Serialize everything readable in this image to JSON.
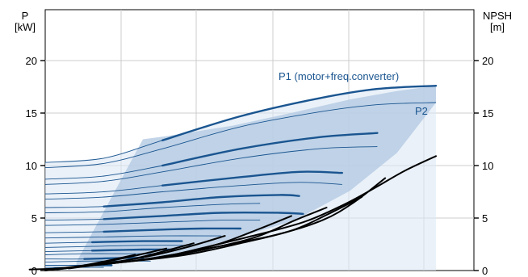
{
  "chart_data": {
    "type": "line",
    "title": "",
    "y_left_label": [
      "P",
      "[kW]"
    ],
    "y_right_label": [
      "NPSH",
      "[m]"
    ],
    "y_left_ticks": [
      "0",
      "5",
      "10",
      "15",
      "20"
    ],
    "y_right_ticks": [
      "0",
      "5",
      "10",
      "15",
      "20"
    ],
    "ylim": [
      0,
      24
    ],
    "xlim": [
      0,
      10
    ],
    "grid": true,
    "colors": {
      "power": "#1a5590",
      "npsh": "#000000",
      "band": "#b7cce4",
      "band_light": "#dce8f5",
      "grid": "#cccccc"
    },
    "annotations": {
      "p1": "P1 (motor+freq.converter)",
      "p2": "P2"
    },
    "speed_region": {
      "x": [
        2.5,
        3.1,
        4.8,
        6.4,
        7.8,
        9.0,
        10.0,
        10.0,
        9.0,
        7.8,
        6.4,
        4.8,
        3.4,
        2.0,
        0.8,
        0.8
      ],
      "y": [
        12.5,
        12.8,
        13.8,
        15.1,
        16.3,
        17.1,
        17.6,
        16.0,
        11.2,
        7.6,
        4.8,
        3.0,
        1.6,
        0.8,
        0.4,
        0.8
      ]
    },
    "power_curves": [
      {
        "name": "P1",
        "points": [
          [
            0,
            10.3
          ],
          [
            1.5,
            10.7
          ],
          [
            3.0,
            12.4
          ],
          [
            5.0,
            14.7
          ],
          [
            7.0,
            16.4
          ],
          [
            8.5,
            17.3
          ],
          [
            10,
            17.6
          ]
        ],
        "bold_from": 3.0
      },
      {
        "name": "P2",
        "points": [
          [
            0,
            9.8
          ],
          [
            1.5,
            10.2
          ],
          [
            3.0,
            11.6
          ],
          [
            5.0,
            13.7
          ],
          [
            7.0,
            15.1
          ],
          [
            8.5,
            15.8
          ],
          [
            10,
            16.0
          ]
        ],
        "bold_from": 99
      },
      {
        "points": [
          [
            0,
            8.7
          ],
          [
            1.5,
            9.0
          ],
          [
            3.0,
            10.0
          ],
          [
            5.0,
            11.6
          ],
          [
            7.0,
            12.7
          ],
          [
            8.5,
            13.1
          ]
        ],
        "bold_from": 3.0
      },
      {
        "points": [
          [
            0,
            8.2
          ],
          [
            1.5,
            8.5
          ],
          [
            3.0,
            9.4
          ],
          [
            5.0,
            10.7
          ],
          [
            7.0,
            11.6
          ],
          [
            8.5,
            11.8
          ]
        ],
        "bold_from": 99
      },
      {
        "points": [
          [
            0,
            7.3
          ],
          [
            1.5,
            7.5
          ],
          [
            3.0,
            8.1
          ],
          [
            5.0,
            8.9
          ],
          [
            6.5,
            9.4
          ],
          [
            7.6,
            9.3
          ]
        ],
        "bold_from": 3.0
      },
      {
        "points": [
          [
            0,
            6.8
          ],
          [
            1.5,
            7.0
          ],
          [
            3.0,
            7.5
          ],
          [
            5.0,
            8.1
          ],
          [
            6.5,
            8.4
          ],
          [
            7.6,
            8.2
          ]
        ],
        "bold_from": 99
      },
      {
        "points": [
          [
            0,
            6.0
          ],
          [
            1.5,
            6.1
          ],
          [
            3.0,
            6.5
          ],
          [
            4.5,
            7.0
          ],
          [
            6.0,
            7.2
          ],
          [
            6.5,
            7.1
          ]
        ],
        "bold_from": 1.5
      },
      {
        "points": [
          [
            0,
            5.5
          ],
          [
            1.5,
            5.6
          ],
          [
            3.0,
            6.0
          ],
          [
            4.5,
            6.3
          ],
          [
            5.5,
            6.4
          ]
        ],
        "bold_from": 99
      },
      {
        "points": [
          [
            0,
            4.8
          ],
          [
            1.5,
            4.9
          ],
          [
            3.0,
            5.2
          ],
          [
            4.5,
            5.5
          ],
          [
            6.0,
            5.5
          ],
          [
            6.6,
            5.4
          ]
        ],
        "bold_from": 1.5
      },
      {
        "points": [
          [
            0,
            4.3
          ],
          [
            1.5,
            4.4
          ],
          [
            3.0,
            4.6
          ],
          [
            4.5,
            4.8
          ],
          [
            5.5,
            4.8
          ]
        ],
        "bold_from": 99
      },
      {
        "points": [
          [
            0,
            3.6
          ],
          [
            1.5,
            3.7
          ],
          [
            3.0,
            3.9
          ],
          [
            4.0,
            4.0
          ],
          [
            5.0,
            4.0
          ]
        ],
        "bold_from": 1.5
      },
      {
        "points": [
          [
            0,
            3.1
          ],
          [
            1.5,
            3.2
          ],
          [
            3.0,
            3.3
          ],
          [
            4.5,
            3.3
          ]
        ],
        "bold_from": 99
      },
      {
        "points": [
          [
            0,
            2.6
          ],
          [
            1.2,
            2.7
          ],
          [
            2.5,
            2.8
          ],
          [
            3.5,
            2.8
          ]
        ],
        "bold_from": 1.2
      },
      {
        "points": [
          [
            0,
            2.2
          ],
          [
            1.2,
            2.3
          ],
          [
            2.5,
            2.4
          ],
          [
            3.8,
            2.4
          ]
        ],
        "bold_from": 99
      },
      {
        "points": [
          [
            0,
            1.8
          ],
          [
            1.2,
            1.9
          ],
          [
            2.5,
            2.0
          ],
          [
            3.3,
            2.0
          ]
        ],
        "bold_from": 1.0
      },
      {
        "points": [
          [
            0,
            1.5
          ],
          [
            1.0,
            1.6
          ],
          [
            2.0,
            1.6
          ],
          [
            3.0,
            1.6
          ]
        ],
        "bold_from": 99
      },
      {
        "points": [
          [
            0,
            1.1
          ],
          [
            1.0,
            1.1
          ],
          [
            2.0,
            1.2
          ],
          [
            2.5,
            1.2
          ]
        ],
        "bold_from": 0.8
      },
      {
        "points": [
          [
            0,
            0.8
          ],
          [
            1.0,
            0.9
          ],
          [
            2.0,
            0.9
          ],
          [
            2.7,
            0.9
          ]
        ],
        "bold_from": 99
      },
      {
        "points": [
          [
            0,
            0.5
          ],
          [
            1.0,
            0.5
          ],
          [
            1.7,
            0.5
          ]
        ],
        "bold_from": 0.6
      },
      {
        "points": [
          [
            0,
            0.3
          ],
          [
            0.8,
            0.3
          ],
          [
            1.5,
            0.3
          ]
        ],
        "bold_from": 99
      }
    ],
    "npsh_curves": [
      {
        "points": [
          [
            3.4,
            1.6
          ],
          [
            5.2,
            3.2
          ],
          [
            6.6,
            4.6
          ],
          [
            7.6,
            6.2
          ],
          [
            8.4,
            7.8
          ],
          [
            9.2,
            9.5
          ],
          [
            10.0,
            10.9
          ]
        ]
      },
      {
        "points": [
          [
            2.8,
            1.2
          ],
          [
            4.3,
            2.2
          ],
          [
            5.9,
            3.4
          ],
          [
            7.1,
            4.8
          ],
          [
            7.9,
            6.5
          ],
          [
            8.7,
            8.8
          ]
        ]
      },
      {
        "points": [
          [
            2.0,
            0.8
          ],
          [
            3.6,
            1.5
          ],
          [
            5.0,
            2.6
          ],
          [
            6.3,
            3.8
          ],
          [
            7.2,
            5.3
          ],
          [
            8.1,
            7.0
          ]
        ]
      },
      {
        "points": [
          [
            1.5,
            0.6
          ],
          [
            2.9,
            1.2
          ],
          [
            4.2,
            2.1
          ],
          [
            5.4,
            3.2
          ],
          [
            6.4,
            4.8
          ],
          [
            7.2,
            6.0
          ]
        ]
      },
      {
        "points": [
          [
            1.0,
            0.4
          ],
          [
            2.2,
            0.9
          ],
          [
            3.4,
            1.6
          ],
          [
            4.5,
            2.6
          ],
          [
            5.5,
            4.0
          ],
          [
            6.3,
            5.2
          ]
        ]
      },
      {
        "points": [
          [
            0.6,
            0.2
          ],
          [
            1.6,
            0.7
          ],
          [
            2.7,
            1.4
          ],
          [
            3.7,
            2.3
          ],
          [
            4.6,
            3.3
          ]
        ]
      },
      {
        "points": [
          [
            0.3,
            0.1
          ],
          [
            1.1,
            0.5
          ],
          [
            2.1,
            1.0
          ],
          [
            3.0,
            1.8
          ],
          [
            3.8,
            2.6
          ]
        ]
      },
      {
        "points": [
          [
            0.0,
            0.0
          ],
          [
            0.7,
            0.3
          ],
          [
            1.5,
            0.8
          ],
          [
            2.4,
            1.5
          ],
          [
            3.1,
            2.1
          ]
        ]
      },
      {
        "points": [
          [
            -0.4,
            0.1
          ],
          [
            0.3,
            0.2
          ],
          [
            1.0,
            0.5
          ],
          [
            1.8,
            1.1
          ],
          [
            2.3,
            1.5
          ]
        ]
      }
    ]
  }
}
